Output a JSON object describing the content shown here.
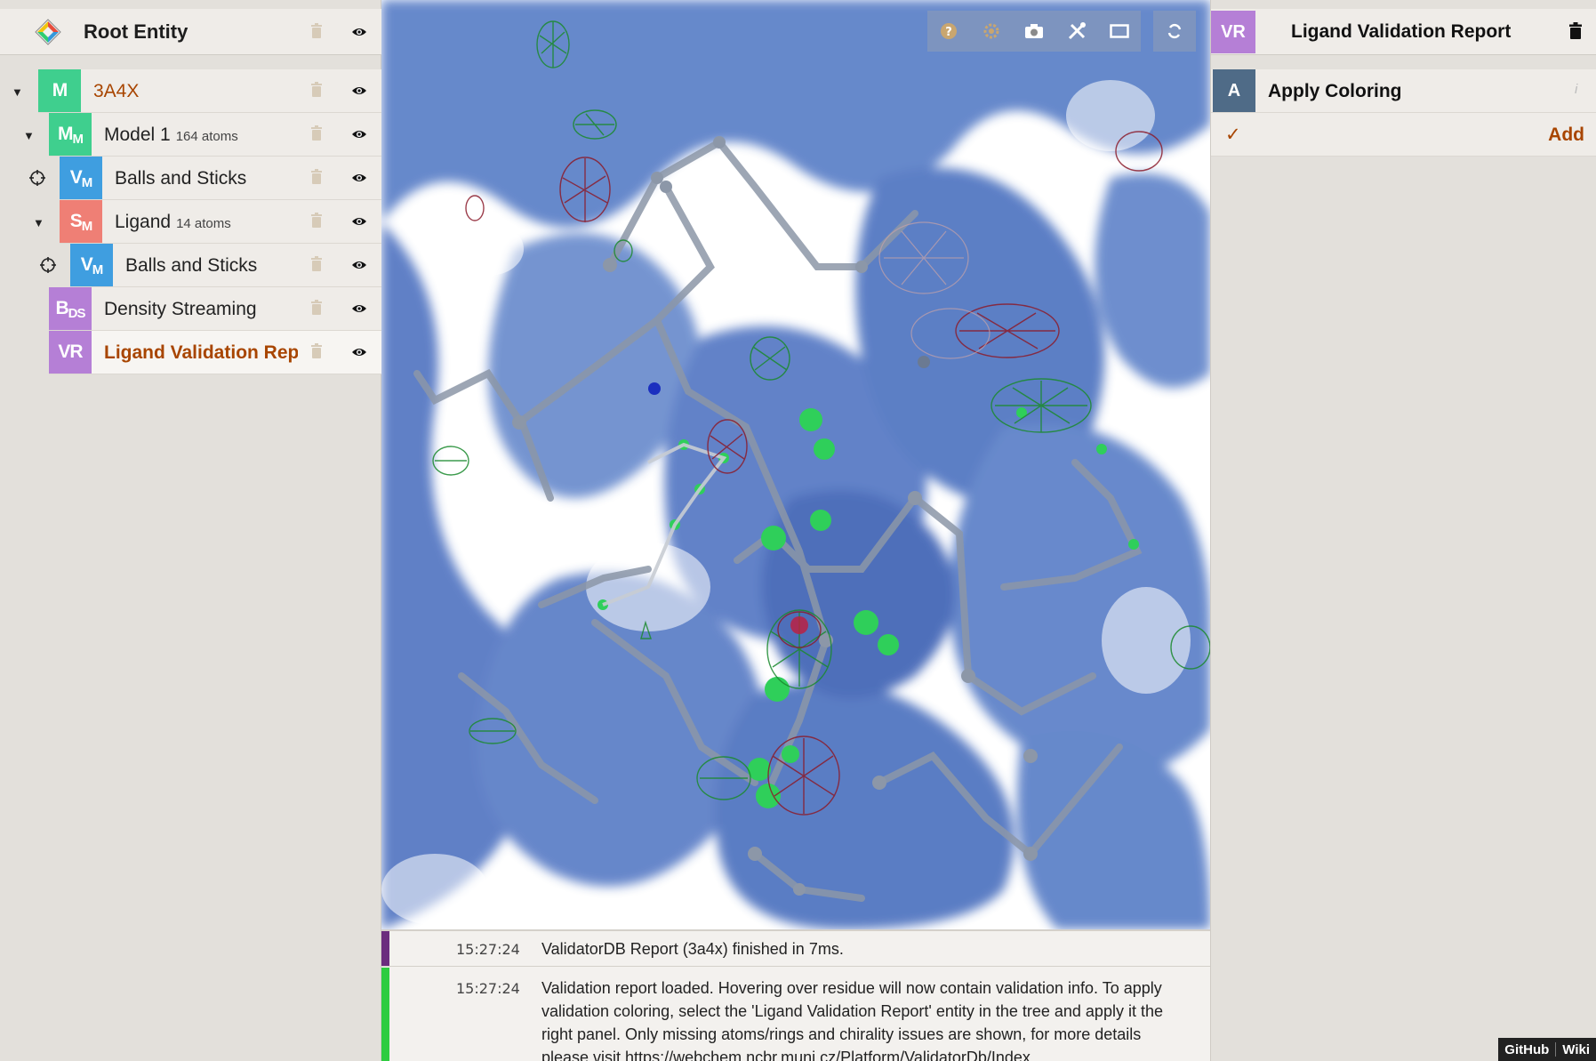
{
  "colors": {
    "accent": "#a84500",
    "badge_m": "#3fcf8e",
    "badge_v": "#3f9ee0",
    "badge_s": "#ef7f75",
    "badge_b": "#b57fd6",
    "badge_vr": "#b57fd6",
    "log_bar_info": "#6b2d7e",
    "log_bar_success": "#2ecc40"
  },
  "tree": {
    "root_title": "Root Entity",
    "items": [
      {
        "badge": "M",
        "badge_sub": "",
        "label": "3A4X",
        "atoms": ""
      },
      {
        "badge": "M",
        "badge_sub": "M",
        "label": "Model 1",
        "atoms": "164 atoms"
      },
      {
        "badge": "V",
        "badge_sub": "M",
        "label": "Balls and Sticks",
        "atoms": ""
      },
      {
        "badge": "S",
        "badge_sub": "M",
        "label": "Ligand",
        "atoms": "14 atoms"
      },
      {
        "badge": "V",
        "badge_sub": "M",
        "label": "Balls and Sticks",
        "atoms": ""
      },
      {
        "badge": "B",
        "badge_sub": "DS",
        "label": "Density Streaming",
        "atoms": ""
      },
      {
        "badge": "VR",
        "badge_sub": "",
        "label": "Ligand Validation Report",
        "atoms": ""
      }
    ]
  },
  "viewport": {
    "toolbar_icons": [
      "help-icon",
      "settings-icon",
      "camera-icon",
      "tools-icon",
      "layout-icon",
      "reset-icon"
    ]
  },
  "log": {
    "entries": [
      {
        "time": "15:27:24",
        "message": "ValidatorDB Report (3a4x) finished in 7ms."
      },
      {
        "time": "15:27:24",
        "message": "Validation report loaded. Hovering over residue will now contain validation info. To apply validation coloring, select the 'Ligand Validation Report' entity in the tree and apply it the right panel. Only missing atoms/rings and chirality issues are shown, for more details please visit https://webchem.ncbr.muni.cz/Platform/ValidatorDb/Index."
      }
    ]
  },
  "right_panel": {
    "badge": "VR",
    "title": "Ligand Validation Report",
    "action_badge": "A",
    "action_title": "Apply Coloring",
    "action_info": "i",
    "add_check": "✓",
    "add_label": "Add"
  },
  "footer": {
    "github": "GitHub",
    "wiki": "Wiki"
  }
}
